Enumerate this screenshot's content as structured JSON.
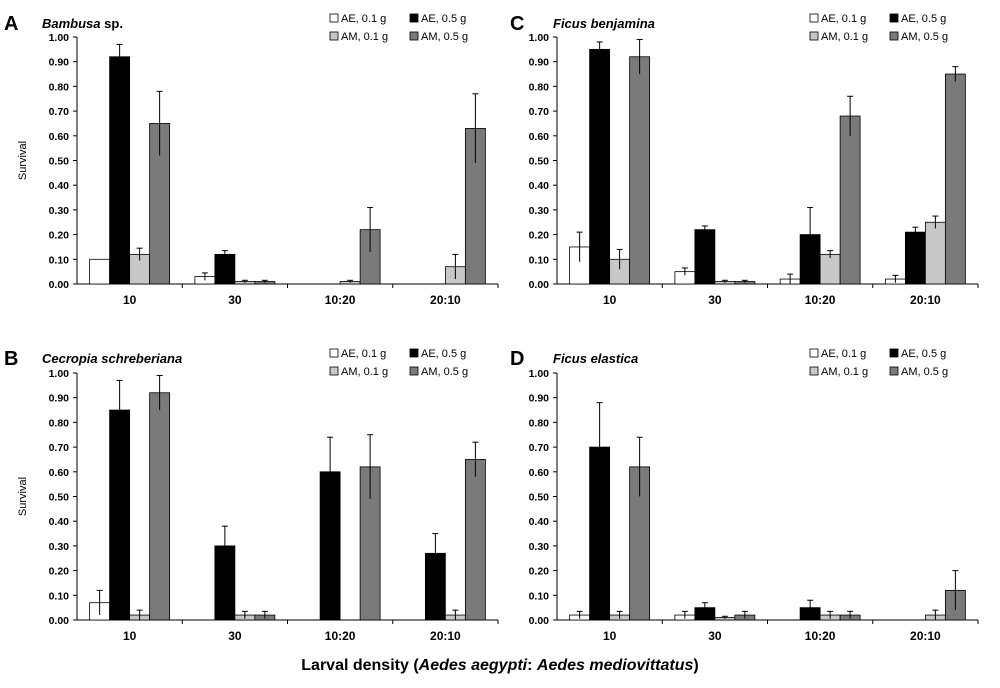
{
  "colors": {
    "AE01": "#ffffff",
    "AE05": "#000000",
    "AM01": "#c8c8c8",
    "AM05": "#7a7a7a",
    "axis": "#000000"
  },
  "xlabel": {
    "pre": "Larval density (",
    "sp1": "Aedes aegypti",
    "sep": ": ",
    "sp2": "Aedes mediovittatus",
    "post": ")"
  },
  "chart_data": [
    {
      "type": "bar",
      "panel": "A",
      "title": "Bambusa sp.",
      "title_italic": "Bambusa",
      "title_suffix": " sp.",
      "ylabel": "Survival",
      "ylim": [
        0,
        1
      ],
      "yticks": [
        "0.00",
        "0.10",
        "0.20",
        "0.30",
        "0.40",
        "0.50",
        "0.60",
        "0.70",
        "0.80",
        "0.90",
        "1.00"
      ],
      "legend_position": "top-right",
      "categories": [
        "10",
        "30",
        "10:20",
        "20:10"
      ],
      "series": [
        {
          "name": "AE, 0.1 g",
          "values": [
            0.1,
            0.03,
            null,
            null
          ],
          "errors": [
            0,
            0.015,
            null,
            null
          ]
        },
        {
          "name": "AE, 0.5 g",
          "values": [
            0.92,
            0.12,
            null,
            null
          ],
          "errors": [
            0.05,
            0.015,
            null,
            null
          ]
        },
        {
          "name": "AM, 0.1 g",
          "values": [
            0.12,
            0.01,
            0.01,
            0.07
          ],
          "errors": [
            0.025,
            0.005,
            0.005,
            0.05
          ]
        },
        {
          "name": "AM, 0.5 g",
          "values": [
            0.65,
            0.01,
            0.22,
            0.63
          ],
          "errors": [
            0.13,
            0.005,
            0.09,
            0.14
          ]
        }
      ]
    },
    {
      "type": "bar",
      "panel": "C",
      "title": "Ficus benjamina",
      "title_italic": "Ficus benjamina",
      "title_suffix": "",
      "ylabel": "",
      "ylim": [
        0,
        1
      ],
      "yticks": [
        "0.00",
        "0.10",
        "0.20",
        "0.30",
        "0.40",
        "0.50",
        "0.60",
        "0.70",
        "0.80",
        "0.90",
        "1.00"
      ],
      "legend_position": "top-right",
      "categories": [
        "10",
        "30",
        "10:20",
        "20:10"
      ],
      "series": [
        {
          "name": "AE, 0.1 g",
          "values": [
            0.15,
            0.05,
            0.02,
            0.02
          ],
          "errors": [
            0.06,
            0.015,
            0.02,
            0.015
          ]
        },
        {
          "name": "AE, 0.5 g",
          "values": [
            0.95,
            0.22,
            0.2,
            0.21
          ],
          "errors": [
            0.03,
            0.015,
            0.11,
            0.02
          ]
        },
        {
          "name": "AM, 0.1 g",
          "values": [
            0.1,
            0.01,
            0.12,
            0.25
          ],
          "errors": [
            0.04,
            0.005,
            0.015,
            0.025
          ]
        },
        {
          "name": "AM, 0.5 g",
          "values": [
            0.92,
            0.01,
            0.68,
            0.85
          ],
          "errors": [
            0.07,
            0.005,
            0.08,
            0.03
          ]
        }
      ]
    },
    {
      "type": "bar",
      "panel": "B",
      "title": "Cecropia schreberiana",
      "title_italic": "Cecropia schreberiana",
      "title_suffix": "",
      "ylabel": "Survival",
      "ylim": [
        0,
        1
      ],
      "yticks": [
        "0.00",
        "0.10",
        "0.20",
        "0.30",
        "0.40",
        "0.50",
        "0.60",
        "0.70",
        "0.80",
        "0.90",
        "1.00"
      ],
      "legend_position": "top-right",
      "categories": [
        "10",
        "30",
        "10:20",
        "20:10"
      ],
      "series": [
        {
          "name": "AE, 0.1 g",
          "values": [
            0.07,
            null,
            null,
            null
          ],
          "errors": [
            0.05,
            null,
            null,
            null
          ]
        },
        {
          "name": "AE, 0.5 g",
          "values": [
            0.85,
            0.3,
            0.6,
            0.27
          ],
          "errors": [
            0.12,
            0.08,
            0.14,
            0.08
          ]
        },
        {
          "name": "AM, 0.1 g",
          "values": [
            0.02,
            0.02,
            null,
            0.02
          ],
          "errors": [
            0.02,
            0.015,
            null,
            0.02
          ]
        },
        {
          "name": "AM, 0.5 g",
          "values": [
            0.92,
            0.02,
            0.62,
            0.65
          ],
          "errors": [
            0.07,
            0.015,
            0.13,
            0.07
          ]
        }
      ]
    },
    {
      "type": "bar",
      "panel": "D",
      "title": "Ficus elastica",
      "title_italic": "Ficus elastica",
      "title_suffix": "",
      "ylabel": "",
      "ylim": [
        0,
        1
      ],
      "yticks": [
        "0.00",
        "0.10",
        "0.20",
        "0.30",
        "0.40",
        "0.50",
        "0.60",
        "0.70",
        "0.80",
        "0.90",
        "1.00"
      ],
      "legend_position": "top-right",
      "categories": [
        "10",
        "30",
        "10:20",
        "20:10"
      ],
      "series": [
        {
          "name": "AE, 0.1 g",
          "values": [
            0.02,
            0.02,
            null,
            null
          ],
          "errors": [
            0.015,
            0.015,
            null,
            null
          ]
        },
        {
          "name": "AE, 0.5 g",
          "values": [
            0.7,
            0.05,
            0.05,
            null
          ],
          "errors": [
            0.18,
            0.02,
            0.03,
            null
          ]
        },
        {
          "name": "AM, 0.1 g",
          "values": [
            0.02,
            0.01,
            0.02,
            0.02
          ],
          "errors": [
            0.015,
            0.005,
            0.015,
            0.02
          ]
        },
        {
          "name": "AM, 0.5 g",
          "values": [
            0.62,
            0.02,
            0.02,
            0.12
          ],
          "errors": [
            0.12,
            0.015,
            0.015,
            0.08
          ]
        }
      ]
    }
  ]
}
